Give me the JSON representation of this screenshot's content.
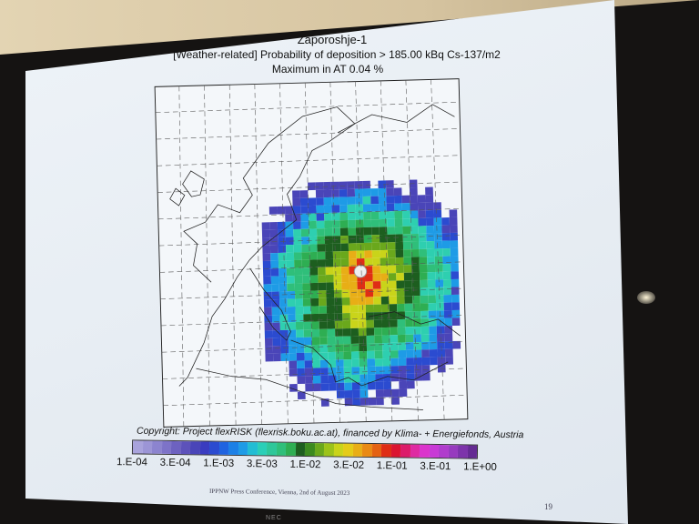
{
  "slide": {
    "title": "Zaporoshje-1",
    "subtitle": "[Weather-related] Probability of deposition > 185.00 kBq Cs-137/m2",
    "maximum": "Maximum in AT   0.04 %",
    "copyright": "Copyright: Project flexRISK (flexrisk.boku.ac.at), financed by Klima- + Energiefonds, Austria",
    "footer": "IPPNW Press Conference, Vienna, 2nd of August 2023",
    "page_number": "19"
  },
  "monitor_brand": "NEC",
  "legend": {
    "ticks": [
      "1.E-04",
      "3.E-04",
      "1.E-03",
      "3.E-03",
      "1.E-02",
      "3.E-02",
      "1.E-01",
      "3.E-01",
      "1.E+00"
    ],
    "colors": [
      "#a9a3dc",
      "#9c95d6",
      "#8c84cf",
      "#7d73c8",
      "#6d62c0",
      "#5d52ba",
      "#4a45b8",
      "#3a3cc0",
      "#2b4bd0",
      "#1f63e0",
      "#1c80e6",
      "#1e9be6",
      "#22bdd4",
      "#2acfb8",
      "#2ec79a",
      "#2fbf7a",
      "#2eae52",
      "#1d5e1f",
      "#3b8a1f",
      "#6aa81c",
      "#9cc31a",
      "#c9d41a",
      "#e4cc18",
      "#e8ae16",
      "#e98a14",
      "#e46212",
      "#df2d15",
      "#db1530",
      "#dc1c6a",
      "#df2aa2",
      "#db34cc",
      "#c83ad6",
      "#b03ccd",
      "#973bbf",
      "#7d34ab",
      "#652b93"
    ]
  },
  "map": {
    "source_label": "Zaporoshje-1",
    "plume_colors": [
      "#4a45b8",
      "#2b4bd0",
      "#1e9be6",
      "#2ecfb0",
      "#2fbf7a",
      "#2eae52",
      "#1d5e1f",
      "#6aa81c",
      "#c9d41a",
      "#e8ae16",
      "#df2d15"
    ]
  }
}
